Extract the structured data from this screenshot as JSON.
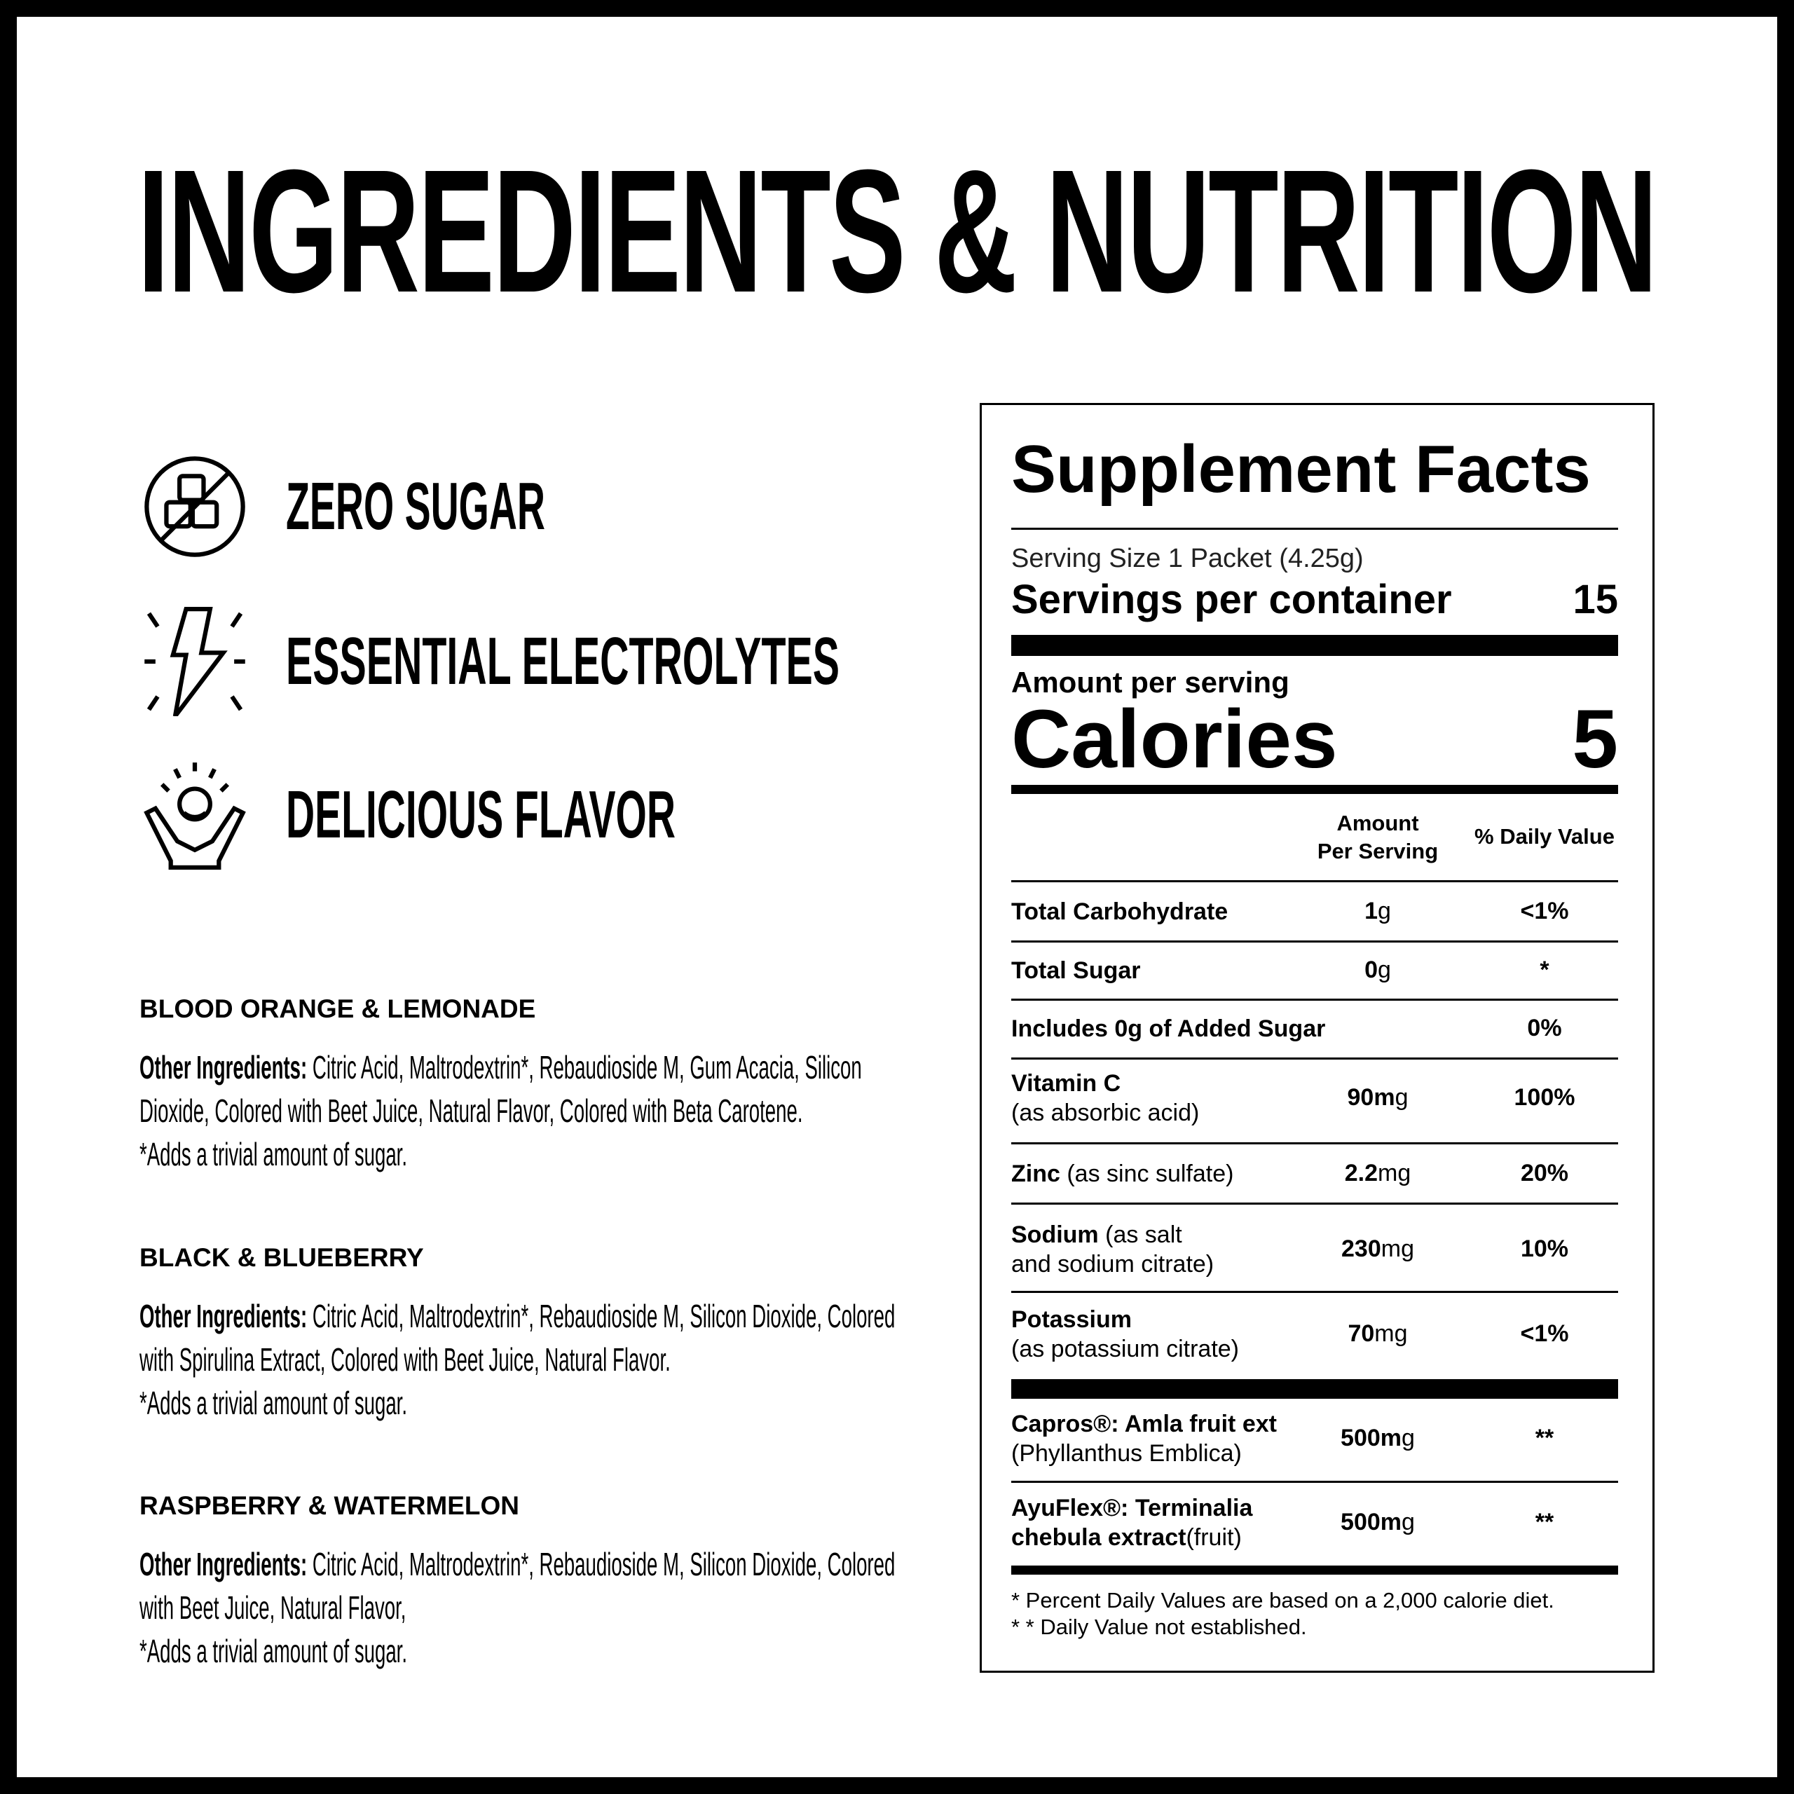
{
  "title": "INGREDIENTS & NUTRITION",
  "features": [
    {
      "label": "ZERO SUGAR",
      "icon": "no-sugar-icon"
    },
    {
      "label": "ESSENTIAL ELECTROLYTES",
      "icon": "lightning-bolt-icon"
    },
    {
      "label": "DELICIOUS FLAVOR",
      "icon": "happy-person-icon"
    }
  ],
  "flavors": [
    {
      "name": "BLOOD ORANGE & LEMONADE",
      "label": "Other Ingredients:",
      "lines": [
        "Citric Acid, Maltrodextrin*, Rebaudioside M, Gum Acacia, Silicon",
        "Dioxide, Colored with Beet Juice, Natural Flavor, Colored with Beta Carotene."
      ],
      "note": "*Adds a trivial amount of sugar."
    },
    {
      "name": "BLACK & BLUEBERRY",
      "label": "Other Ingredients:",
      "lines": [
        "Citric Acid, Maltrodextrin*, Rebaudioside M, Silicon Dioxide, Colored",
        "with Spirulina Extract, Colored with Beet Juice, Natural Flavor."
      ],
      "note": "*Adds a trivial amount of sugar."
    },
    {
      "name": "RASPBERRY & WATERMELON",
      "label": "Other Ingredients:",
      "lines": [
        "Citric Acid, Maltrodextrin*, Rebaudioside M, Silicon Dioxide, Colored",
        "with Beet Juice, Natural Flavor,"
      ],
      "note": "*Adds a trivial amount of sugar."
    }
  ],
  "facts": {
    "title": "Supplement Facts",
    "serving_size": "Serving Size 1 Packet (4.25g)",
    "servings_label": "Servings per container",
    "servings_value": "15",
    "amount_per_serving": "Amount per serving",
    "calories_label": "Calories",
    "calories_value": "5",
    "col_amount_1": "Amount",
    "col_amount_2": "Per Serving",
    "col_dv": "% Daily Value",
    "rows": [
      {
        "name": "Total Carbohydrate",
        "sub": "",
        "amount": "1",
        "unit": "g",
        "dv": "<1%"
      },
      {
        "name": "Total Sugar",
        "sub": "",
        "amount": "0",
        "unit": "g",
        "dv": "*"
      },
      {
        "name": "Includes 0g of Added Sugar",
        "sub": "",
        "amount": "",
        "unit": "",
        "dv": "0%"
      },
      {
        "name": "Vitamin C",
        "sub": "(as absorbic acid)",
        "amount": "90m",
        "unit": "g",
        "dv": "100%"
      },
      {
        "name": "Zinc",
        "sub": " (as sinc sulfate)",
        "amount": "2.2",
        "unit": "mg",
        "dv": "20%"
      },
      {
        "name": "Sodium",
        "sub": " (as salt",
        "sub2": "and sodium citrate)",
        "amount": "230",
        "unit": "mg",
        "dv": "10%"
      },
      {
        "name": "Potassium",
        "sub": "(as potassium citrate)",
        "amount": "70",
        "unit": "mg",
        "dv": "<1%"
      },
      {
        "name": "Capros®: Amla fruit ext",
        "sub": "(Phyllanthus Emblica)",
        "amount": "500m",
        "unit": "g",
        "dv": "**"
      },
      {
        "name": "AyuFlex®: Terminalia",
        "name2": "chebula extract",
        "sub": "(fruit)",
        "amount": "500m",
        "unit": "g",
        "dv": "**"
      }
    ],
    "footnote_1": "* Percent Daily Values are based on a 2,000 calorie diet.",
    "footnote_2": "* * Daily Value not established."
  }
}
